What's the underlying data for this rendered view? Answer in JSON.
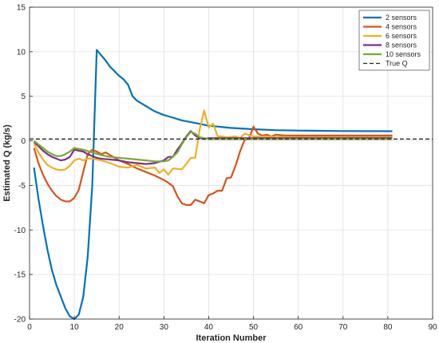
{
  "chart_data": {
    "type": "line",
    "xlabel": "Iteration Number",
    "ylabel": "Estimated Q (kg/s)",
    "xlim": [
      0,
      90
    ],
    "ylim": [
      -20,
      15
    ],
    "xticks": [
      0,
      10,
      20,
      30,
      40,
      50,
      60,
      70,
      80,
      90
    ],
    "yticks": [
      -20,
      -15,
      -10,
      -5,
      0,
      5,
      10,
      15
    ],
    "grid": true,
    "legend_position": "top-right",
    "series": [
      {
        "name": "2 sensors",
        "color": "#0072BD",
        "points": [
          [
            1,
            -3
          ],
          [
            2,
            -6.5
          ],
          [
            3,
            -9.5
          ],
          [
            4,
            -12.2
          ],
          [
            5,
            -14.5
          ],
          [
            6,
            -16.2
          ],
          [
            7,
            -17.5
          ],
          [
            8,
            -18.8
          ],
          [
            9,
            -19.7
          ],
          [
            10,
            -20
          ],
          [
            11,
            -19.5
          ],
          [
            12,
            -17.5
          ],
          [
            13,
            -13
          ],
          [
            14,
            -5
          ],
          [
            15,
            10.2
          ],
          [
            16,
            9.6
          ],
          [
            17,
            9
          ],
          [
            18,
            8.3
          ],
          [
            19,
            7.8
          ],
          [
            20,
            7.3
          ],
          [
            21,
            6.9
          ],
          [
            22,
            6.3
          ],
          [
            23,
            5
          ],
          [
            24,
            4.5
          ],
          [
            25,
            4.2
          ],
          [
            26,
            3.9
          ],
          [
            27,
            3.6
          ],
          [
            28,
            3.3
          ],
          [
            30,
            2.9
          ],
          [
            32,
            2.6
          ],
          [
            34,
            2.3
          ],
          [
            36,
            2.1
          ],
          [
            38,
            1.9
          ],
          [
            40,
            1.7
          ],
          [
            42,
            1.6
          ],
          [
            45,
            1.45
          ],
          [
            50,
            1.3
          ],
          [
            55,
            1.2
          ],
          [
            60,
            1.15
          ],
          [
            70,
            1.1
          ],
          [
            81,
            1.08
          ]
        ]
      },
      {
        "name": "4 sensors",
        "color": "#D95319",
        "points": [
          [
            1,
            -0.8
          ],
          [
            2,
            -2.5
          ],
          [
            3,
            -3.8
          ],
          [
            4,
            -4.8
          ],
          [
            5,
            -5.6
          ],
          [
            6,
            -6.2
          ],
          [
            7,
            -6.6
          ],
          [
            8,
            -6.8
          ],
          [
            9,
            -6.8
          ],
          [
            10,
            -6.4
          ],
          [
            11,
            -5.5
          ],
          [
            12,
            -3.5
          ],
          [
            13,
            -1.5
          ],
          [
            14,
            -1
          ],
          [
            15,
            -1.2
          ],
          [
            16,
            -1.5
          ],
          [
            17,
            -1.3
          ],
          [
            18,
            -1.6
          ],
          [
            19,
            -1.9
          ],
          [
            20,
            -2.2
          ],
          [
            22,
            -2.6
          ],
          [
            24,
            -3.1
          ],
          [
            26,
            -3.5
          ],
          [
            28,
            -3.9
          ],
          [
            30,
            -4.4
          ],
          [
            31,
            -4.7
          ],
          [
            32,
            -5.1
          ],
          [
            33,
            -6.2
          ],
          [
            34,
            -7.0
          ],
          [
            35,
            -7.2
          ],
          [
            36,
            -7.2
          ],
          [
            37,
            -6.6
          ],
          [
            38,
            -6.8
          ],
          [
            39,
            -7.0
          ],
          [
            40,
            -6.1
          ],
          [
            41,
            -5.9
          ],
          [
            42,
            -5.6
          ],
          [
            43,
            -5.6
          ],
          [
            44,
            -4.2
          ],
          [
            45,
            -4.1
          ],
          [
            46,
            -2.8
          ],
          [
            47,
            -1.2
          ],
          [
            48,
            0.1
          ],
          [
            49,
            0.3
          ],
          [
            50,
            1.6
          ],
          [
            51,
            0.8
          ],
          [
            52,
            0.6
          ],
          [
            53,
            0.7
          ],
          [
            54,
            0.5
          ],
          [
            55,
            0.7
          ],
          [
            57,
            0.6
          ],
          [
            60,
            0.6
          ],
          [
            70,
            0.6
          ],
          [
            81,
            0.6
          ]
        ]
      },
      {
        "name": "6 sensors",
        "color": "#EDB120",
        "points": [
          [
            1,
            -0.3
          ],
          [
            2,
            -1.3
          ],
          [
            3,
            -2.1
          ],
          [
            4,
            -2.7
          ],
          [
            5,
            -3.0
          ],
          [
            6,
            -3.2
          ],
          [
            7,
            -3.3
          ],
          [
            8,
            -3.2
          ],
          [
            9,
            -2.8
          ],
          [
            10,
            -2.2
          ],
          [
            11,
            -2
          ],
          [
            12,
            -2.2
          ],
          [
            13,
            -2
          ],
          [
            14,
            -2
          ],
          [
            16,
            -2.2
          ],
          [
            18,
            -2.5
          ],
          [
            20,
            -2.9
          ],
          [
            22,
            -3.0
          ],
          [
            24,
            -2.7
          ],
          [
            26,
            -3.1
          ],
          [
            28,
            -3.0
          ],
          [
            29,
            -3.6
          ],
          [
            30,
            -3.2
          ],
          [
            31,
            -3.8
          ],
          [
            32,
            -3.1
          ],
          [
            34,
            -3.2
          ],
          [
            35,
            -2.6
          ],
          [
            36,
            -1.9
          ],
          [
            37,
            -1.9
          ],
          [
            38,
            1.3
          ],
          [
            39,
            3.4
          ],
          [
            40,
            1.5
          ],
          [
            41,
            1.9
          ],
          [
            42,
            0.5
          ],
          [
            43,
            0.5
          ],
          [
            44,
            0.4
          ],
          [
            46,
            0.5
          ],
          [
            47,
            0.3
          ],
          [
            48,
            0.8
          ],
          [
            50,
            0.5
          ],
          [
            60,
            0.4
          ],
          [
            70,
            0.4
          ],
          [
            81,
            0.4
          ]
        ]
      },
      {
        "name": "8 sensors",
        "color": "#7E2F8E",
        "points": [
          [
            1,
            -0.1
          ],
          [
            2,
            -0.6
          ],
          [
            3,
            -1.1
          ],
          [
            4,
            -1.5
          ],
          [
            5,
            -1.8
          ],
          [
            6,
            -2.0
          ],
          [
            7,
            -2.2
          ],
          [
            8,
            -2.1
          ],
          [
            9,
            -1.8
          ],
          [
            10,
            -1.0
          ],
          [
            11,
            -1.1
          ],
          [
            12,
            -1.2
          ],
          [
            13,
            -1.5
          ],
          [
            14,
            -1.7
          ],
          [
            15,
            -1.9
          ],
          [
            16,
            -2.0
          ],
          [
            18,
            -2.1
          ],
          [
            20,
            -2.2
          ],
          [
            22,
            -2.4
          ],
          [
            24,
            -2.5
          ],
          [
            26,
            -2.6
          ],
          [
            28,
            -2.5
          ],
          [
            30,
            -2.2
          ],
          [
            31,
            -1.8
          ],
          [
            32,
            -1.8
          ],
          [
            33,
            -1.0
          ],
          [
            34,
            -0.3
          ],
          [
            35,
            0.5
          ],
          [
            36,
            1.1
          ],
          [
            37,
            0.6
          ],
          [
            38,
            0.3
          ],
          [
            39,
            0.2
          ],
          [
            40,
            0.3
          ],
          [
            45,
            0.3
          ],
          [
            50,
            0.3
          ],
          [
            60,
            0.3
          ],
          [
            70,
            0.3
          ],
          [
            81,
            0.3
          ]
        ]
      },
      {
        "name": "10 sensors",
        "color": "#77AC30",
        "points": [
          [
            1,
            0
          ],
          [
            2,
            -0.4
          ],
          [
            3,
            -0.8
          ],
          [
            4,
            -1.2
          ],
          [
            5,
            -1.5
          ],
          [
            6,
            -1.7
          ],
          [
            7,
            -1.7
          ],
          [
            8,
            -1.5
          ],
          [
            9,
            -1.2
          ],
          [
            10,
            -0.8
          ],
          [
            12,
            -1.0
          ],
          [
            14,
            -1.3
          ],
          [
            16,
            -1.6
          ],
          [
            18,
            -1.8
          ],
          [
            20,
            -1.9
          ],
          [
            22,
            -2.0
          ],
          [
            24,
            -2.1
          ],
          [
            26,
            -2.2
          ],
          [
            28,
            -2.3
          ],
          [
            30,
            -2.3
          ],
          [
            31,
            -2.2
          ],
          [
            32,
            -1.8
          ],
          [
            33,
            -1.3
          ],
          [
            34,
            -0.4
          ],
          [
            35,
            0.4
          ],
          [
            36,
            1.0
          ],
          [
            37,
            0.8
          ],
          [
            38,
            0.4
          ],
          [
            40,
            0.2
          ],
          [
            45,
            0.2
          ],
          [
            50,
            0.2
          ],
          [
            60,
            0.2
          ],
          [
            70,
            0.2
          ],
          [
            81,
            0.2
          ]
        ]
      },
      {
        "name": "True Q",
        "color": "#262626",
        "dashed": true,
        "points": [
          [
            0,
            0.2
          ],
          [
            90,
            0.2
          ]
        ]
      }
    ]
  }
}
